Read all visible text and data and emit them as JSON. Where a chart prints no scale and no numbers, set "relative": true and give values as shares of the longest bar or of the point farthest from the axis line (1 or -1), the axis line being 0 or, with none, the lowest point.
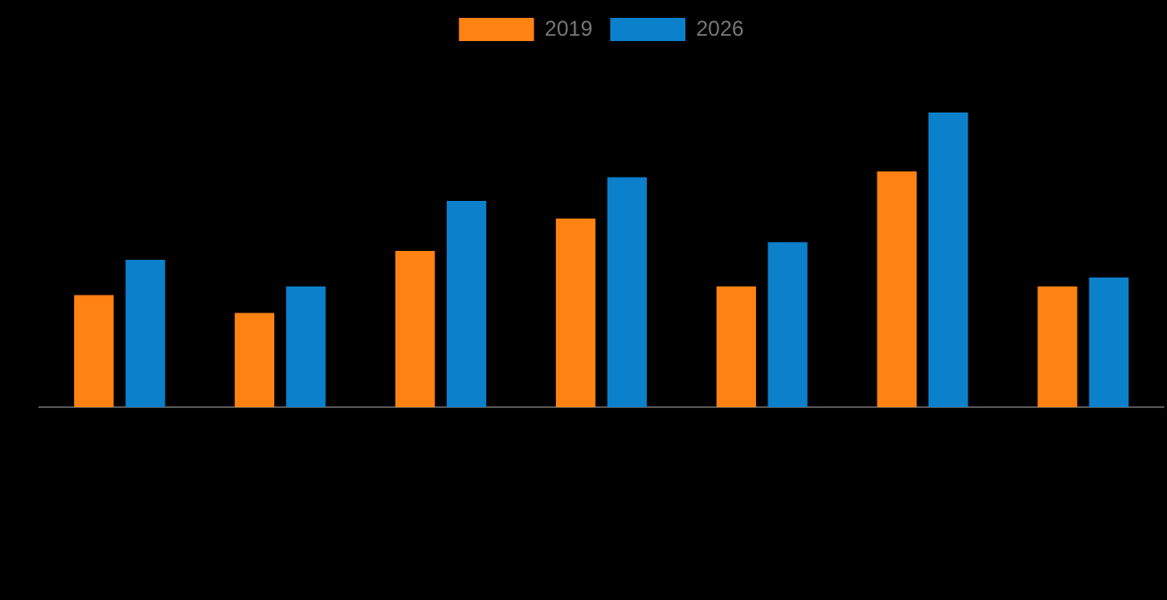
{
  "chart_data": {
    "type": "bar",
    "relative": true,
    "categories": [
      null,
      null,
      null,
      null,
      null,
      null,
      null
    ],
    "legend": "top",
    "series": [
      {
        "name": "2019",
        "color": "#ff8213",
        "values": [
          0.38,
          0.32,
          0.53,
          0.64,
          0.41,
          0.8,
          0.41
        ]
      },
      {
        "name": "2026",
        "color": "#0b80cb",
        "values": [
          0.5,
          0.41,
          0.7,
          0.78,
          0.56,
          1,
          0.44
        ]
      }
    ]
  }
}
